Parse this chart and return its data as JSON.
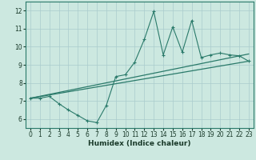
{
  "xlabel": "Humidex (Indice chaleur)",
  "xlim": [
    -0.5,
    23.5
  ],
  "ylim": [
    5.5,
    12.5
  ],
  "yticks": [
    6,
    7,
    8,
    9,
    10,
    11,
    12
  ],
  "xticks": [
    0,
    1,
    2,
    3,
    4,
    5,
    6,
    7,
    8,
    9,
    10,
    11,
    12,
    13,
    14,
    15,
    16,
    17,
    18,
    19,
    20,
    21,
    22,
    23
  ],
  "bg_color": "#cce8e0",
  "grid_color": "#aacccc",
  "line_color": "#2a7a6a",
  "line1_x": [
    0,
    1,
    2,
    3,
    4,
    5,
    6,
    7,
    8,
    9,
    10,
    11,
    12,
    13,
    14,
    15,
    16,
    17,
    18,
    19,
    20,
    21,
    22,
    23
  ],
  "line1_y": [
    7.15,
    7.15,
    7.25,
    6.85,
    6.5,
    6.2,
    5.9,
    5.8,
    6.75,
    8.35,
    8.45,
    9.15,
    10.4,
    11.95,
    9.55,
    11.1,
    9.7,
    11.45,
    9.4,
    9.55,
    9.65,
    9.55,
    9.5,
    9.2
  ],
  "line2_x": [
    0,
    23
  ],
  "line2_y": [
    7.15,
    9.2
  ],
  "line3_x": [
    0,
    23
  ],
  "line3_y": [
    7.15,
    9.6
  ]
}
